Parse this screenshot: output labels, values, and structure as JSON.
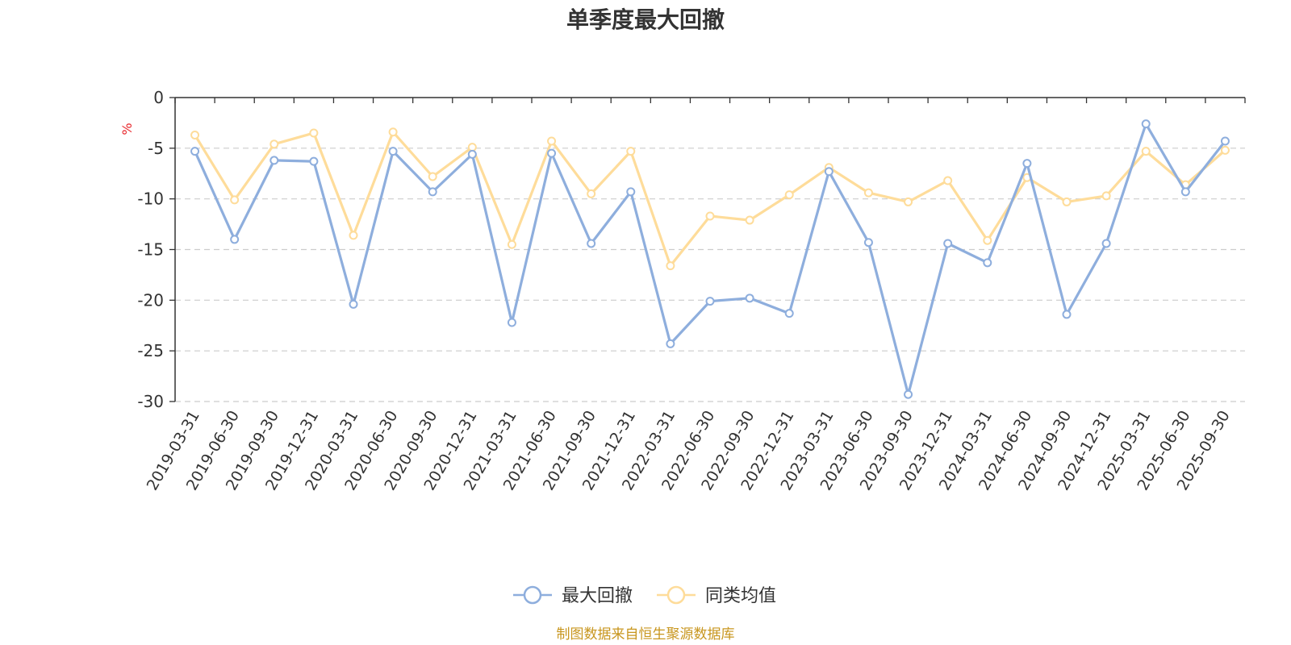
{
  "chart_data": {
    "type": "line",
    "title": "单季度最大回撤",
    "ylabel": "%",
    "ylim": [
      -30,
      0
    ],
    "yticks": [
      0,
      -5,
      -10,
      -15,
      -20,
      -25,
      -30
    ],
    "grid": true,
    "legend_position": "bottom-center",
    "categories": [
      "2019-03-31",
      "2019-06-30",
      "2019-09-30",
      "2019-12-31",
      "2020-03-31",
      "2020-06-30",
      "2020-09-30",
      "2020-12-31",
      "2021-03-31",
      "2021-06-30",
      "2021-09-30",
      "2021-12-31",
      "2022-03-31",
      "2022-06-30",
      "2022-09-30",
      "2022-12-31",
      "2023-03-31",
      "2023-06-30",
      "2023-09-30",
      "2023-12-31",
      "2024-03-31",
      "2024-06-30",
      "2024-09-30",
      "2024-12-31",
      "2025-03-31",
      "2025-06-30",
      "2025-09-30"
    ],
    "series": [
      {
        "name": "最大回撤",
        "color": "#8eaedd",
        "values": [
          -5.3,
          -14.0,
          -6.2,
          -6.3,
          -20.4,
          -5.3,
          -9.3,
          -5.6,
          -22.2,
          -5.5,
          -14.4,
          -9.3,
          -24.3,
          -20.1,
          -19.8,
          -21.3,
          -7.3,
          -14.3,
          -29.3,
          -14.4,
          -16.3,
          -6.5,
          -21.4,
          -14.4,
          -2.6,
          -9.3,
          -4.3
        ]
      },
      {
        "name": "同类均值",
        "color": "#fedc9a",
        "values": [
          -3.7,
          -10.1,
          -4.6,
          -3.5,
          -13.6,
          -3.4,
          -7.8,
          -4.9,
          -14.5,
          -4.3,
          -9.5,
          -5.3,
          -16.6,
          -11.7,
          -12.1,
          -9.6,
          -6.9,
          -9.4,
          -10.3,
          -8.2,
          -14.1,
          -7.9,
          -10.3,
          -9.7,
          -5.3,
          -8.6,
          -5.2
        ]
      }
    ]
  },
  "source_note": "制图数据来自恒生聚源数据库"
}
